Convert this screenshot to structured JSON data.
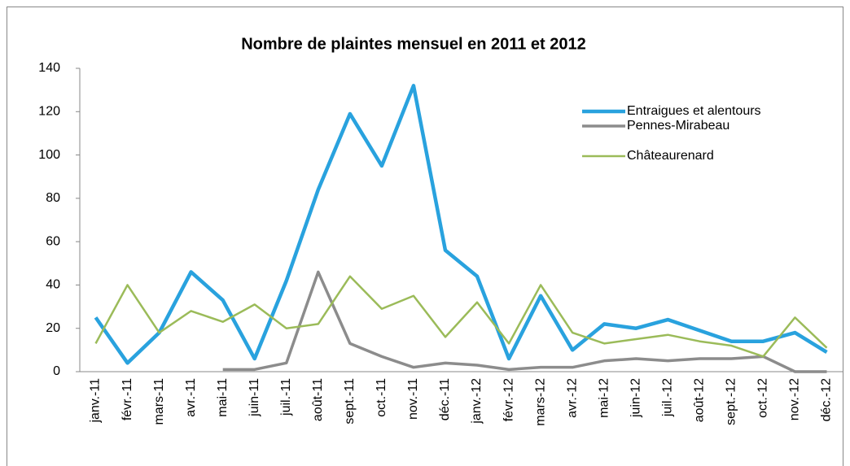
{
  "chart_data": {
    "type": "line",
    "title": "Nombre de plaintes mensuel en 2011 et 2012",
    "categories": [
      "janv.-11",
      "févr.-11",
      "mars-11",
      "avr.-11",
      "mai-11",
      "juin-11",
      "juil.-11",
      "août-11",
      "sept.-11",
      "oct.-11",
      "nov.-11",
      "déc.-11",
      "janv.-12",
      "févr.-12",
      "mars-12",
      "avr.-12",
      "mai-12",
      "juin-12",
      "juil.-12",
      "août-12",
      "sept.-12",
      "oct.-12",
      "nov.-12",
      "déc.-12"
    ],
    "series": [
      {
        "name": "Entraigues et alentours",
        "color": "#29a2de",
        "values": [
          25,
          4,
          18,
          46,
          33,
          6,
          42,
          84,
          119,
          95,
          132,
          56,
          44,
          6,
          35,
          10,
          22,
          20,
          24,
          19,
          14,
          14,
          18,
          9
        ]
      },
      {
        "name": "Pennes-Mirabeau",
        "color": "#8c8c8c",
        "values": [
          null,
          null,
          null,
          null,
          1,
          1,
          4,
          46,
          13,
          7,
          2,
          4,
          3,
          1,
          2,
          2,
          5,
          6,
          5,
          6,
          6,
          7,
          0,
          0
        ]
      },
      {
        "name": "Châteaurenard",
        "color": "#9bbb59",
        "values": [
          13,
          40,
          18,
          28,
          23,
          31,
          20,
          22,
          44,
          29,
          35,
          16,
          32,
          13,
          40,
          18,
          13,
          15,
          17,
          14,
          12,
          7,
          25,
          11
        ]
      }
    ],
    "ylim": [
      0,
      140
    ],
    "yticks": [
      0,
      20,
      40,
      60,
      80,
      100,
      120,
      140
    ],
    "legend": "top-right"
  }
}
